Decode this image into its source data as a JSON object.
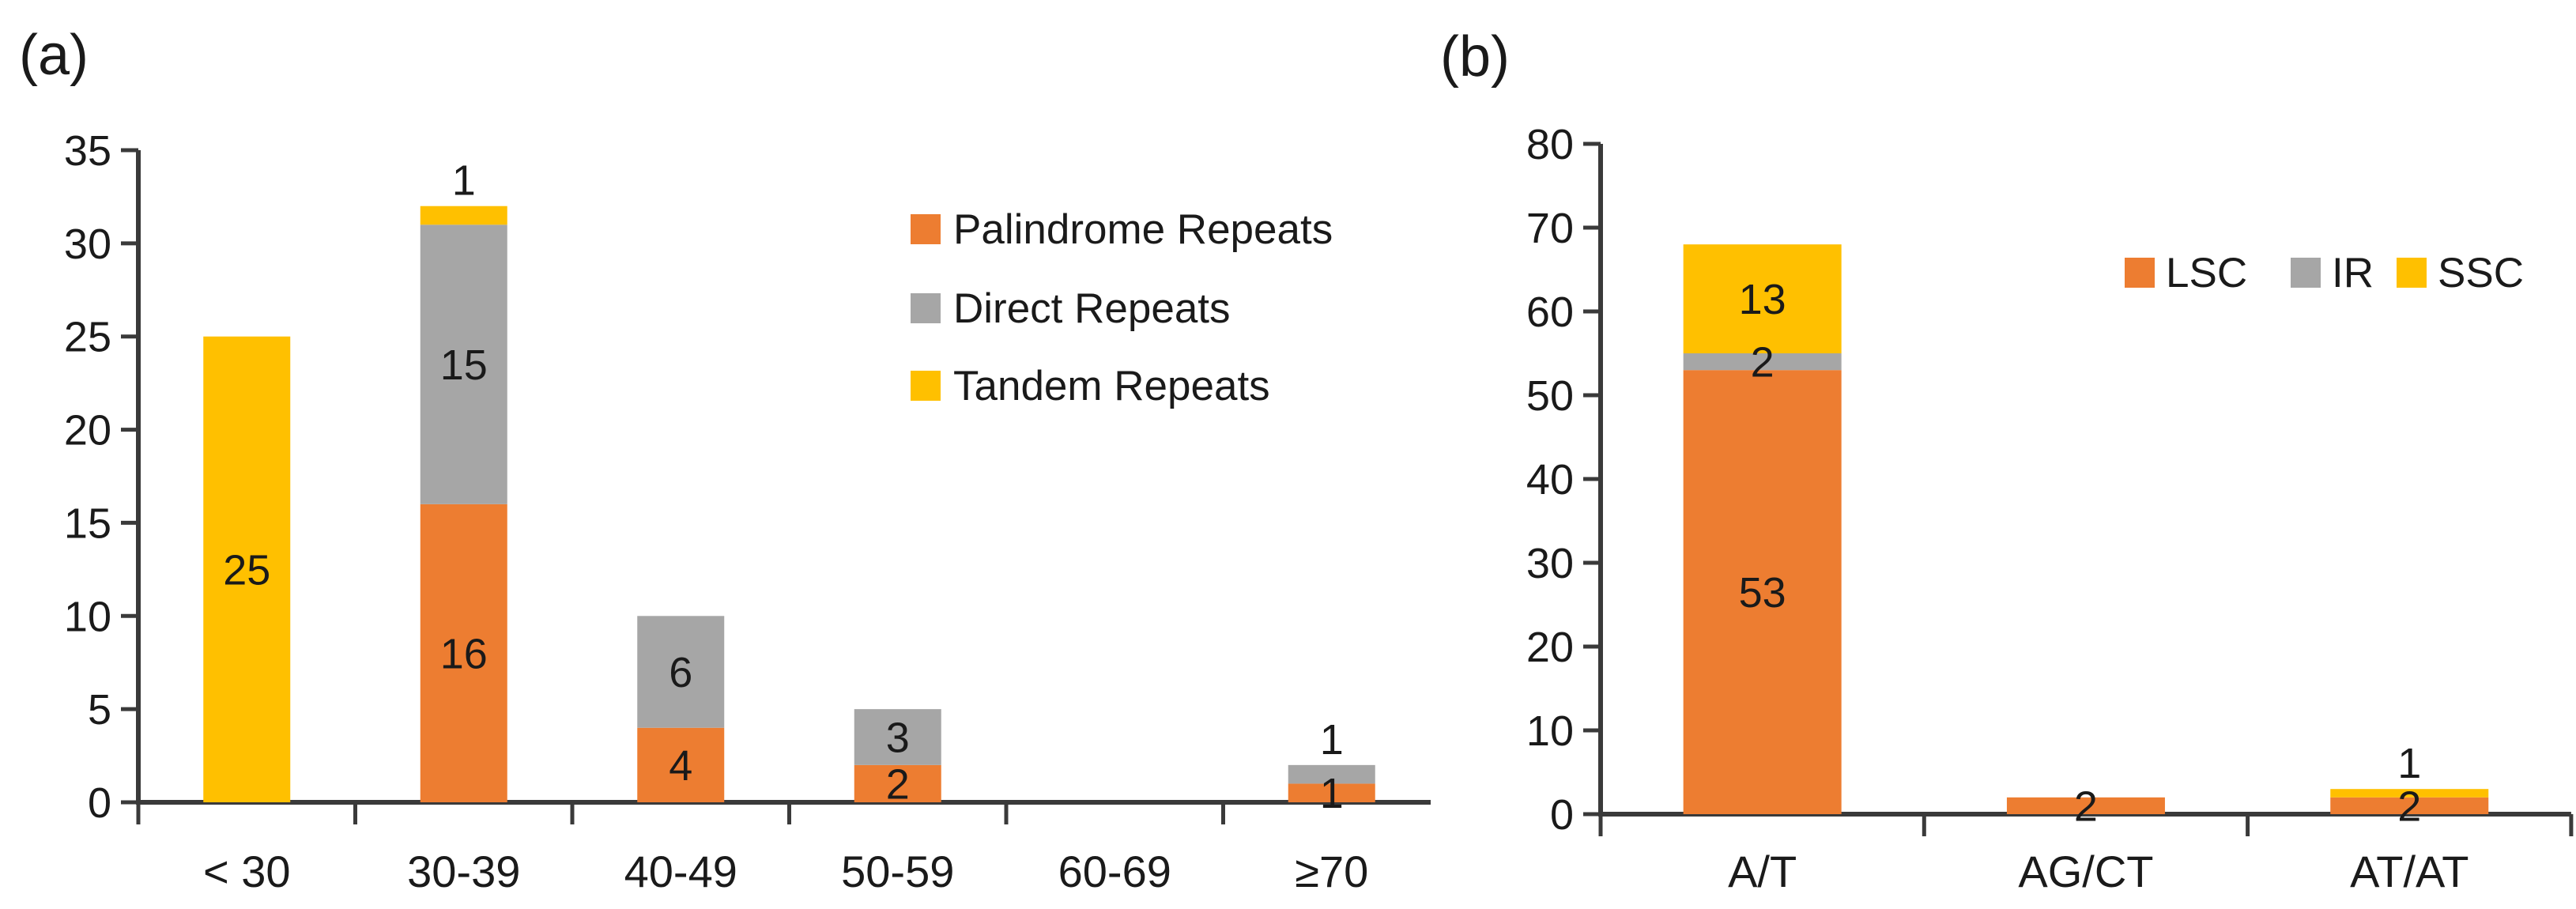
{
  "figure": {
    "background": "#ffffff",
    "text_color": "#1a1a1a",
    "axis_color": "#3a3a3a"
  },
  "chart_data": [
    {
      "id": "a",
      "panel_label": "(a)",
      "type": "bar",
      "stacked": true,
      "grid": false,
      "categories": [
        "< 30",
        "30-39",
        "40-49",
        "50-59",
        "60-69",
        "≥70"
      ],
      "series": [
        {
          "name": "Palindrome Repeats",
          "color": "#ED7D31",
          "values": [
            0,
            16,
            4,
            2,
            0,
            1
          ]
        },
        {
          "name": "Direct Repeats",
          "color": "#A6A6A6",
          "values": [
            0,
            15,
            6,
            3,
            0,
            1
          ]
        },
        {
          "name": "Tandem Repeats",
          "color": "#FFC000",
          "values": [
            25,
            1,
            0,
            0,
            0,
            0
          ]
        }
      ],
      "ylim": [
        0,
        35
      ],
      "ytick_step": 5,
      "yticks": [
        "0",
        "5",
        "10",
        "15",
        "20",
        "25",
        "30",
        "35"
      ],
      "legend": {
        "position": "inside-top-right",
        "orientation": "vertical",
        "entries": [
          "Palindrome Repeats",
          "Direct Repeats",
          "Tandem Repeats"
        ]
      },
      "bar_labels": [
        {
          "category": "< 30",
          "series": "Tandem Repeats",
          "text": "25",
          "placement": "inside"
        },
        {
          "category": "30-39",
          "series": "Palindrome Repeats",
          "text": "16",
          "placement": "inside"
        },
        {
          "category": "30-39",
          "series": "Direct Repeats",
          "text": "15",
          "placement": "inside"
        },
        {
          "category": "30-39",
          "series": "Tandem Repeats",
          "text": "1",
          "placement": "above"
        },
        {
          "category": "40-49",
          "series": "Palindrome Repeats",
          "text": "4",
          "placement": "inside"
        },
        {
          "category": "40-49",
          "series": "Direct Repeats",
          "text": "6",
          "placement": "inside"
        },
        {
          "category": "50-59",
          "series": "Palindrome Repeats",
          "text": "2",
          "placement": "inside"
        },
        {
          "category": "50-59",
          "series": "Direct Repeats",
          "text": "3",
          "placement": "inside"
        },
        {
          "category": "≥70",
          "series": "Palindrome Repeats",
          "text": "1",
          "placement": "inside"
        },
        {
          "category": "≥70",
          "series": "Direct Repeats",
          "text": "1",
          "placement": "above"
        }
      ]
    },
    {
      "id": "b",
      "panel_label": "(b)",
      "type": "bar",
      "stacked": true,
      "grid": false,
      "categories": [
        "A/T",
        "AG/CT",
        "AT/AT"
      ],
      "series": [
        {
          "name": "LSC",
          "color": "#ED7D31",
          "values": [
            53,
            2,
            2
          ]
        },
        {
          "name": "IR",
          "color": "#A6A6A6",
          "values": [
            2,
            0,
            0
          ]
        },
        {
          "name": "SSC",
          "color": "#FFC000",
          "values": [
            13,
            0,
            1
          ]
        }
      ],
      "ylim": [
        0,
        80
      ],
      "ytick_step": 10,
      "yticks": [
        "0",
        "10",
        "20",
        "30",
        "40",
        "50",
        "60",
        "70",
        "80"
      ],
      "legend": {
        "position": "inside-right",
        "orientation": "horizontal",
        "entries": [
          "LSC",
          "IR",
          "SSC"
        ]
      },
      "bar_labels": [
        {
          "category": "A/T",
          "series": "LSC",
          "text": "53",
          "placement": "inside"
        },
        {
          "category": "A/T",
          "series": "IR",
          "text": "2",
          "placement": "inside"
        },
        {
          "category": "A/T",
          "series": "SSC",
          "text": "13",
          "placement": "inside"
        },
        {
          "category": "AG/CT",
          "series": "LSC",
          "text": "2",
          "placement": "inside"
        },
        {
          "category": "AT/AT",
          "series": "LSC",
          "text": "2",
          "placement": "inside"
        },
        {
          "category": "AT/AT",
          "series": "SSC",
          "text": "1",
          "placement": "above"
        }
      ]
    }
  ]
}
